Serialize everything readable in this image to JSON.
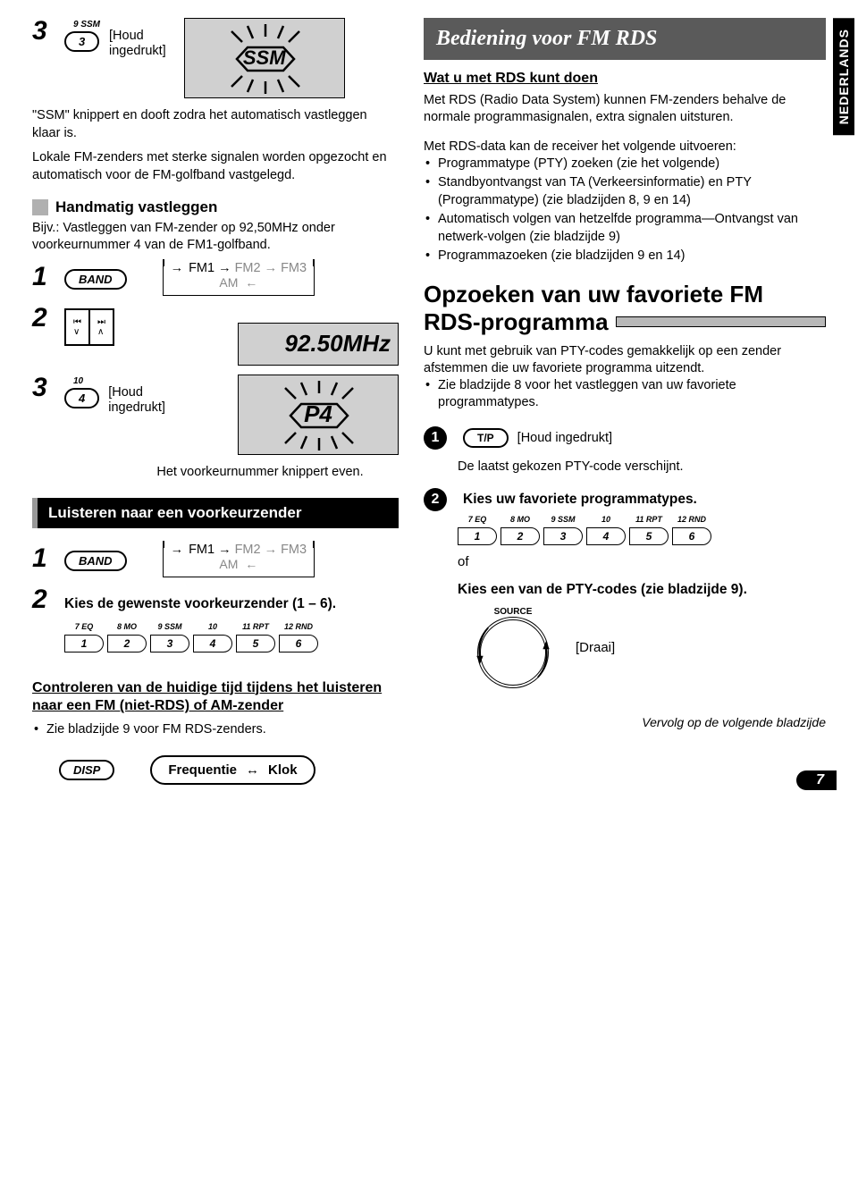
{
  "sideTab": "NEDERLANDS",
  "pageNumber": "7",
  "left": {
    "step3a": {
      "num": "3",
      "btnTop": "9 SSM",
      "btn": "3",
      "hold": "[Houd\ningedrukt]",
      "ssm": "SSM"
    },
    "ssmNote": "\"SSM\" knippert en dooft zodra het automatisch vastleggen klaar is.",
    "localNote": "Lokale FM-zenders met sterke signalen worden opgezocht en automatisch voor de FM-golfband vastgelegd.",
    "manual": {
      "title": "Handmatig vastleggen",
      "example": "Bijv.: Vastleggen van FM-zender op 92,50MHz onder voorkeurnummer 4 van de FM1-golfband."
    },
    "step1": {
      "num": "1",
      "band": "BAND",
      "fm1": "FM1",
      "fm2": "FM2",
      "fm3": "FM3",
      "am": "AM"
    },
    "step2": {
      "num": "2",
      "freq": "92.50MHz"
    },
    "step3b": {
      "num": "3",
      "btnTop": "10",
      "btn": "4",
      "hold": "[Houd\ningedrukt]",
      "p4": "P4",
      "caption": "Het voorkeurnummer knippert even."
    },
    "listenBar": "Luisteren naar een voorkeurzender",
    "listen1": {
      "num": "1",
      "band": "BAND",
      "fm1": "FM1",
      "fm2": "FM2",
      "fm3": "FM3",
      "am": "AM"
    },
    "listen2": {
      "num": "2",
      "text": "Kies de gewenste voorkeurzender (1 – 6)."
    },
    "numButtons": {
      "tops": [
        "7 EQ",
        "8 MO",
        "9 SSM",
        "10",
        "11 RPT",
        "12 RND"
      ],
      "nums": [
        "1",
        "2",
        "3",
        "4",
        "5",
        "6"
      ]
    },
    "checkTime": {
      "title": "Controleren van de huidige tijd tijdens het luisteren naar een FM (niet-RDS) of AM-zender",
      "bullet": "Zie bladzijde 9 voor FM RDS-zenders.",
      "disp": "DISP",
      "freq": "Frequentie",
      "klok": "Klok"
    }
  },
  "right": {
    "header": "Bediening voor FM RDS",
    "watTitle": "Wat u met RDS kunt doen",
    "watText": "Met RDS (Radio Data System) kunnen FM-zenders behalve de normale programmasignalen, extra signalen uitsturen.",
    "rdsIntro": "Met RDS-data kan de receiver het volgende uitvoeren:",
    "rdsBullets": [
      "Programmatype (PTY) zoeken (zie het volgende)",
      "Standbyontvangst van TA (Verkeersinformatie) en PTY (Programmatype) (zie bladzijden 8, 9 en 14)",
      "Automatisch volgen van hetzelfde programma—Ontvangst van netwerk-volgen (zie bladzijde 9)",
      "Programmazoeken (zie bladzijden 9 en 14)"
    ],
    "opzoekenTitle1": "Opzoeken van uw favoriete FM",
    "opzoekenTitle2": "RDS-programma",
    "opzoekenText": "U kunt met gebruik van PTY-codes gemakkelijk op een zender afstemmen die uw favoriete programma uitzendt.",
    "opzoekenBullet": "Zie bladzijde 8 voor het vastleggen van uw favoriete programmatypes.",
    "s1": {
      "num": "1",
      "tp": "T/P",
      "hold": "[Houd ingedrukt]",
      "result": "De laatst gekozen PTY-code verschijnt."
    },
    "s2": {
      "num": "2",
      "text": "Kies uw favoriete programmatypes.",
      "of": "of"
    },
    "numButtons": {
      "tops": [
        "7 EQ",
        "8 MO",
        "9 SSM",
        "10",
        "11 RPT",
        "12 RND"
      ],
      "nums": [
        "1",
        "2",
        "3",
        "4",
        "5",
        "6"
      ]
    },
    "kiesPTY": "Kies een van de PTY-codes (zie bladzijde 9).",
    "source": "SOURCE",
    "draai": "[Draai]",
    "vervolg": "Vervolg op de volgende bladzijde"
  }
}
